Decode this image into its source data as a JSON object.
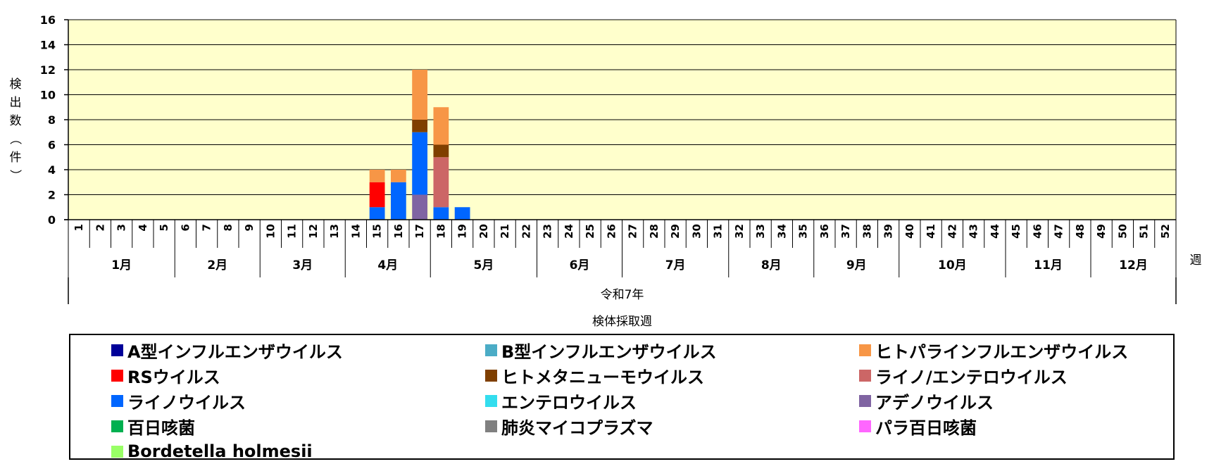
{
  "chart_data": {
    "type": "bar",
    "stacked": true,
    "xlabel": "検体採取週",
    "x_unit": "週",
    "era_label": "令和7年",
    "ylabel": "検出数（件）",
    "ylim": [
      0,
      16
    ],
    "yticks": [
      0,
      2,
      4,
      6,
      8,
      10,
      12,
      14,
      16
    ],
    "grid": true,
    "plot_background": "#FFFFCC",
    "legend_position": "bottom",
    "categories": [
      "1",
      "2",
      "3",
      "4",
      "5",
      "6",
      "7",
      "8",
      "9",
      "10",
      "11",
      "12",
      "13",
      "14",
      "15",
      "16",
      "17",
      "18",
      "19",
      "20",
      "21",
      "22",
      "23",
      "24",
      "25",
      "26",
      "27",
      "28",
      "29",
      "30",
      "31",
      "32",
      "33",
      "34",
      "35",
      "36",
      "37",
      "38",
      "39",
      "40",
      "41",
      "42",
      "43",
      "44",
      "45",
      "46",
      "47",
      "48",
      "49",
      "50",
      "51",
      "52"
    ],
    "months": [
      {
        "label": "1月",
        "start": 1,
        "end": 5
      },
      {
        "label": "2月",
        "start": 6,
        "end": 9
      },
      {
        "label": "3月",
        "start": 10,
        "end": 13
      },
      {
        "label": "4月",
        "start": 14,
        "end": 17
      },
      {
        "label": "5月",
        "start": 18,
        "end": 22
      },
      {
        "label": "6月",
        "start": 23,
        "end": 26
      },
      {
        "label": "7月",
        "start": 27,
        "end": 31
      },
      {
        "label": "8月",
        "start": 32,
        "end": 35
      },
      {
        "label": "9月",
        "start": 36,
        "end": 39
      },
      {
        "label": "10月",
        "start": 40,
        "end": 44
      },
      {
        "label": "11月",
        "start": 45,
        "end": 48
      },
      {
        "label": "12月",
        "start": 49,
        "end": 52
      }
    ],
    "series": [
      {
        "name": "A型インフルエンザウイルス",
        "color": "#000099",
        "values": {}
      },
      {
        "name": "B型インフルエンザウイルス",
        "color": "#4BACC6",
        "values": {}
      },
      {
        "name": "ヒトパラインフルエンザウイルス",
        "color": "#F79646",
        "values": {
          "15": 1,
          "16": 1,
          "17": 4,
          "18": 3
        }
      },
      {
        "name": "RSウイルス",
        "color": "#FF0000",
        "values": {
          "15": 2
        }
      },
      {
        "name": "ヒトメタニューモウイルス",
        "color": "#7F3F00",
        "values": {
          "17": 1,
          "18": 1
        }
      },
      {
        "name": "ライノ/エンテロウイルス",
        "color": "#CC6666",
        "values": {
          "18": 4
        }
      },
      {
        "name": "ライノウイルス",
        "color": "#0066FF",
        "values": {
          "15": 1,
          "16": 3,
          "17": 5,
          "18": 1,
          "19": 1
        }
      },
      {
        "name": "エンテロウイルス",
        "color": "#33DDEE",
        "values": {}
      },
      {
        "name": "アデノウイルス",
        "color": "#8064A2",
        "values": {
          "17": 2
        }
      },
      {
        "name": "百日咳菌",
        "color": "#00B050",
        "values": {}
      },
      {
        "name": "肺炎マイコプラズマ",
        "color": "#808080",
        "values": {}
      },
      {
        "name": "パラ百日咳菌",
        "color": "#FF66FF",
        "values": {}
      },
      {
        "name": "Bordetella holmesii",
        "color": "#99FF66",
        "values": {}
      }
    ],
    "stack_order": [
      "アデノウイルス",
      "ライノウイルス",
      "RSウイルス",
      "ライノ/エンテロウイルス",
      "ヒトメタニューモウイルス",
      "ヒトパラインフルエンザウイルス"
    ]
  }
}
